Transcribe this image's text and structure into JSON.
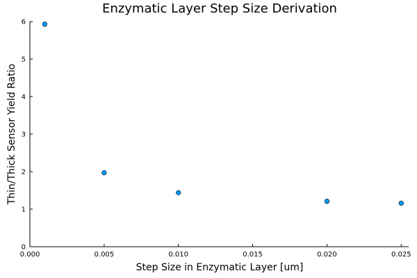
{
  "chart_data": {
    "type": "scatter",
    "title": "Enzymatic Layer Step Size Derivation",
    "xlabel": "Step Size in Enzymatic Layer [um]",
    "ylabel": "Thin/Thick Sensor Yield Ratio",
    "xlim": [
      0.0,
      0.0255
    ],
    "ylim": [
      0,
      6
    ],
    "xticks": [
      0.0,
      0.005,
      0.01,
      0.015,
      0.02,
      0.025
    ],
    "xtick_labels": [
      "0.000",
      "0.005",
      "0.010",
      "0.015",
      "0.020",
      "0.025"
    ],
    "yticks": [
      0,
      1,
      2,
      3,
      4,
      5,
      6
    ],
    "ytick_labels": [
      "0",
      "1",
      "2",
      "3",
      "4",
      "5",
      "6"
    ],
    "grid": false,
    "legend": "none",
    "point_color": "#009AFA",
    "series": [
      {
        "x": [
          0.001,
          0.005,
          0.01,
          0.02,
          0.025
        ],
        "y": [
          5.93,
          1.97,
          1.44,
          1.21,
          1.16
        ]
      }
    ]
  }
}
